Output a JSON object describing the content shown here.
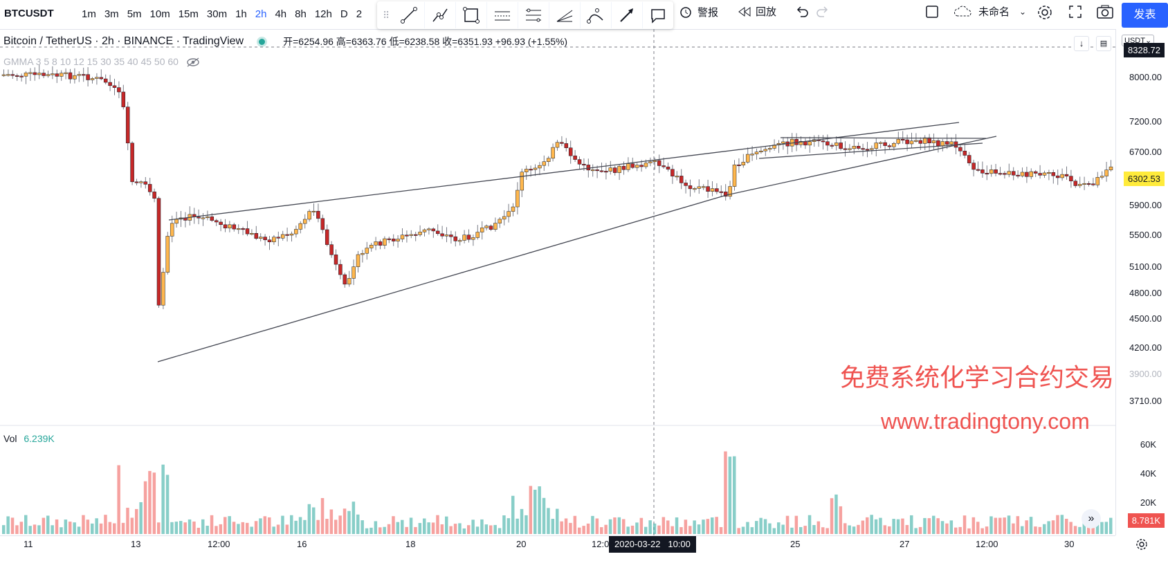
{
  "toolbar": {
    "symbol": "BTCUSDT",
    "intervals": [
      "1m",
      "3m",
      "5m",
      "10m",
      "15m",
      "30m",
      "1h",
      "2h",
      "4h",
      "8h",
      "12h",
      "D",
      "2"
    ],
    "active_interval": "2h",
    "alert_label": "警报",
    "replay_label": "回放",
    "layout_name": "未命名",
    "publish_label": "发表"
  },
  "legend": {
    "title": "Bitcoin / TetherUS · 2h · BINANCE · TradingView",
    "ohlc": "开=6254.96 高=6363.76 低=6238.58 收=6351.93 +96.93 (+1.55%)",
    "indicator": "GMMA 3 5 8 10 12 15 30 35 40 45 50 60"
  },
  "price_axis": {
    "currency": "USDT",
    "ticks": [
      "8000.00",
      "7200.00",
      "6700.00",
      "5900.00",
      "5500.00",
      "5100.00",
      "4800.00",
      "4500.00",
      "4200.00",
      "3900.00",
      "3710.00"
    ],
    "current_price": "6302.53",
    "crosshair_price": "8328.72"
  },
  "volume": {
    "label": "Vol",
    "value": "6.239K",
    "ticks": [
      "60K",
      "40K",
      "20K"
    ],
    "current": "8.781K"
  },
  "time_axis": {
    "ticks": [
      "11",
      "13",
      "12:00",
      "16",
      "18",
      "20",
      "12:0",
      "25",
      "27",
      "12:00",
      "30"
    ],
    "crosshair_time": "2020-03-22   10:00"
  },
  "watermark": {
    "line1": "免费系统化学习合约交易网站",
    "line2": "www.tradingtony.com"
  },
  "colors": {
    "up": "#26a69a",
    "down": "#ef5350",
    "bull_body": "#ffb74d",
    "bear_body": "#c62828",
    "accent": "#2962ff"
  }
}
